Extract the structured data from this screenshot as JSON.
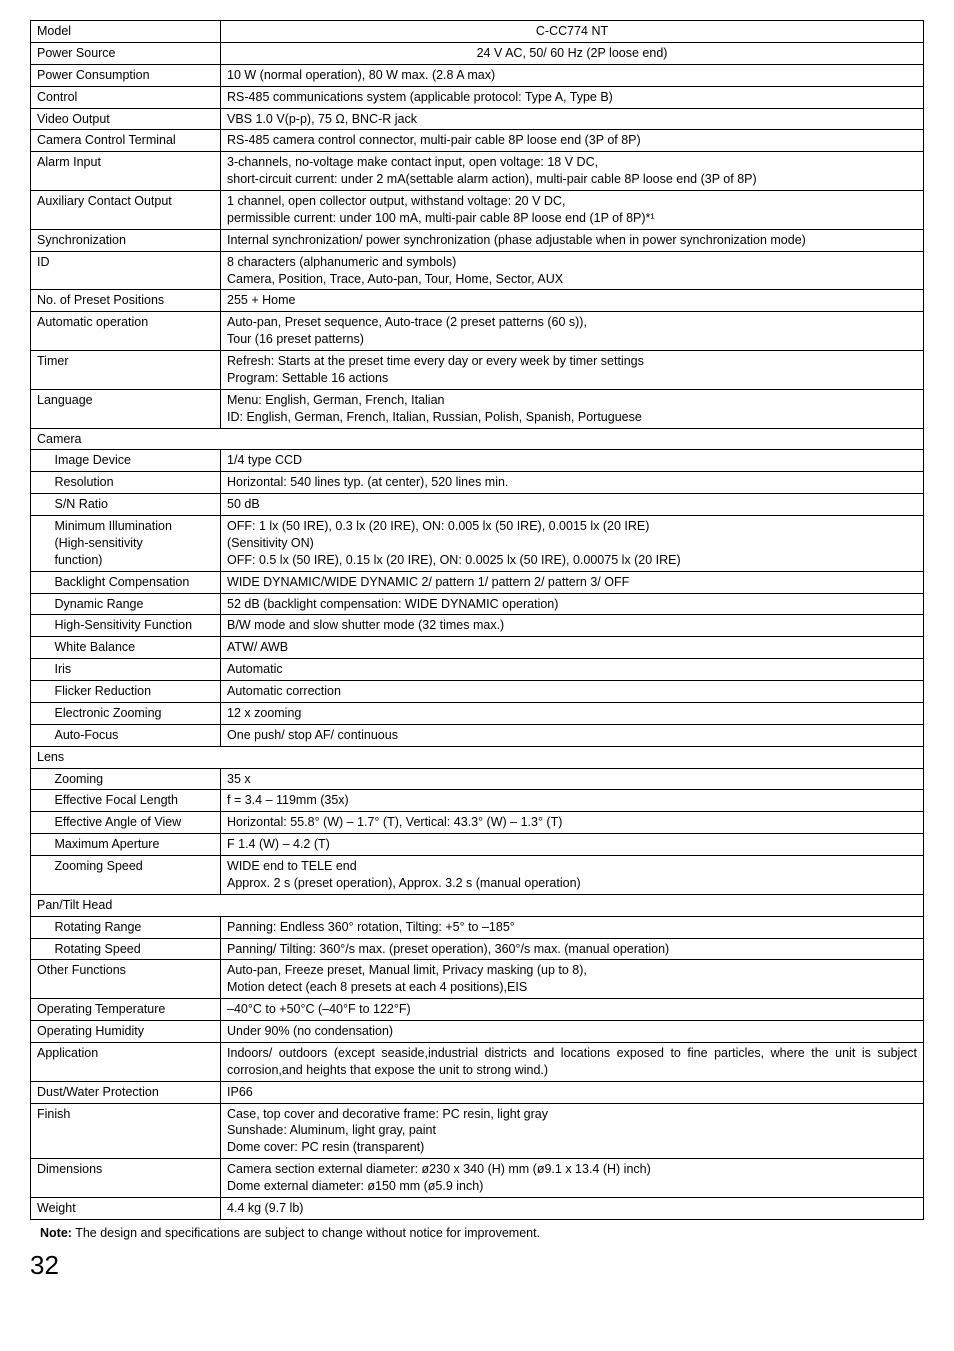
{
  "rows": {
    "model": {
      "label": "Model",
      "value": "C-CC774 NT"
    },
    "power_source": {
      "label": "Power Source",
      "value": "24 V AC, 50/ 60 Hz (2P loose end)"
    },
    "power_consumption": {
      "label": "Power Consumption",
      "value": "10 W (normal operation), 80 W max. (2.8 A max)"
    },
    "control": {
      "label": "Control",
      "value": "RS-485 communications system (applicable protocol: Type A, Type B)"
    },
    "video_output": {
      "label": "Video Output",
      "value": "VBS 1.0 V(p-p), 75 Ω, BNC-R jack"
    },
    "camera_control_terminal": {
      "label": "Camera Control Terminal",
      "value": "RS-485 camera control connector, multi-pair cable 8P loose end (3P of 8P)"
    },
    "alarm_input": {
      "label": "Alarm Input",
      "value": "3-channels, no-voltage make contact input, open voltage: 18 V DC,\nshort-circuit current: under 2 mA(settable alarm action), multi-pair cable 8P loose end (3P of 8P)"
    },
    "aux_contact_output": {
      "label": "Auxiliary Contact Output",
      "value": "1 channel, open collector output, withstand voltage: 20 V DC,\npermissible current: under 100 mA, multi-pair cable 8P loose end (1P of 8P)*¹"
    },
    "synchronization": {
      "label": "Synchronization",
      "value": "Internal synchronization/ power synchronization (phase adjustable when in power synchronization mode)"
    },
    "id": {
      "label": "ID",
      "value": "8 characters (alphanumeric and symbols)\nCamera, Position, Trace, Auto-pan, Tour, Home, Sector, AUX"
    },
    "preset_positions": {
      "label": "No. of Preset Positions",
      "value": "255 + Home"
    },
    "automatic_operation": {
      "label": "Automatic operation",
      "value": "Auto-pan, Preset sequence, Auto-trace (2 preset patterns (60 s)),\nTour (16 preset patterns)"
    },
    "timer": {
      "label": "Timer",
      "value": "Refresh: Starts at the preset time every day or every week by timer settings\nProgram: Settable 16 actions"
    },
    "language": {
      "label": "Language",
      "value": "Menu: English, German, French, Italian\nID: English, German, French, Italian, Russian, Polish, Spanish, Portuguese"
    },
    "camera_header": {
      "label": "Camera"
    },
    "image_device": {
      "label": "Image Device",
      "value": "1/4 type CCD"
    },
    "resolution": {
      "label": "Resolution",
      "value": "Horizontal: 540 lines typ. (at center), 520 lines min."
    },
    "sn_ratio": {
      "label": "S/N Ratio",
      "value": "50 dB"
    },
    "min_illumination": {
      "label": "Minimum Illumination\n(High-sensitivity\nfunction)",
      "value": "OFF: 1 lx (50 IRE), 0.3 lx (20 IRE), ON: 0.005 lx (50 IRE), 0.0015 lx (20 IRE)\n (Sensitivity ON)\nOFF: 0.5 lx (50 IRE), 0.15 lx (20 IRE), ON: 0.0025 lx (50 IRE), 0.00075 lx (20 IRE)"
    },
    "backlight_comp": {
      "label": "Backlight Compensation",
      "value": "WIDE DYNAMIC/WIDE DYNAMIC 2/ pattern 1/ pattern 2/ pattern 3/ OFF"
    },
    "dynamic_range": {
      "label": "Dynamic Range",
      "value": "52 dB (backlight compensation: WIDE DYNAMIC operation)"
    },
    "high_sens": {
      "label": "High-Sensitivity Function",
      "value": "B/W mode and slow shutter mode (32 times max.)"
    },
    "white_balance": {
      "label": "White Balance",
      "value": "ATW/ AWB"
    },
    "iris": {
      "label": "Iris",
      "value": "Automatic"
    },
    "flicker": {
      "label": "Flicker Reduction",
      "value": "Automatic correction"
    },
    "elec_zoom": {
      "label": "Electronic Zooming",
      "value": "12 x zooming"
    },
    "auto_focus": {
      "label": "Auto-Focus",
      "value": "One push/ stop AF/ continuous"
    },
    "lens_header": {
      "label": "Lens"
    },
    "zooming": {
      "label": "Zooming",
      "value": "35 x"
    },
    "focal_length": {
      "label": "Effective Focal Length",
      "value": "f = 3.4 – 119mm (35x)"
    },
    "angle_view": {
      "label": "Effective Angle of View",
      "value": "Horizontal: 55.8° (W) – 1.7° (T), Vertical: 43.3° (W) – 1.3° (T)"
    },
    "max_aperture": {
      "label": "Maximum Aperture",
      "value": "F 1.4 (W) – 4.2 (T)"
    },
    "zoom_speed": {
      "label": "Zooming Speed",
      "value": "WIDE end to TELE end\nApprox. 2 s (preset operation), Approx. 3.2 s (manual operation)"
    },
    "pantilt_header": {
      "label": "Pan/Tilt Head"
    },
    "rotating_range": {
      "label": "Rotating Range",
      "value": "Panning: Endless 360° rotation, Tilting: +5° to –185°"
    },
    "rotating_speed": {
      "label": "Rotating Speed",
      "value": "Panning/ Tilting: 360°/s max. (preset operation), 360°/s max. (manual operation)"
    },
    "other_functions": {
      "label": "Other Functions",
      "value": "Auto-pan, Freeze preset, Manual limit, Privacy masking (up to 8),\nMotion detect (each 8 presets at each 4 positions),EIS"
    },
    "op_temp": {
      "label": "Operating Temperature",
      "value": "–40°C to +50°C (–40°F to 122°F)"
    },
    "op_humidity": {
      "label": "Operating Humidity",
      "value": "Under 90% (no condensation)"
    },
    "application": {
      "label": "Application",
      "value": "Indoors/ outdoors (except seaside,industrial districts and locations exposed to fine particles, where the unit is subject corrosion,and heights that expose the unit to strong wind.)"
    },
    "dust_water": {
      "label": "Dust/Water Protection",
      "value": "IP66"
    },
    "finish": {
      "label": "Finish",
      "value": "Case, top cover and decorative frame: PC resin, light gray\nSunshade: Aluminum, light gray, paint\nDome cover: PC resin (transparent)"
    },
    "dimensions": {
      "label": "Dimensions",
      "value": "Camera section external diameter: ø230 x 340 (H) mm (ø9.1 x 13.4 (H) inch)\nDome external diameter: ø150 mm (ø5.9 inch)"
    },
    "weight": {
      "label": "Weight",
      "value": "4.4 kg (9.7 lb)"
    }
  },
  "note": "Note: The design and specifications are subject to change without notice for improvement.",
  "page": "32"
}
